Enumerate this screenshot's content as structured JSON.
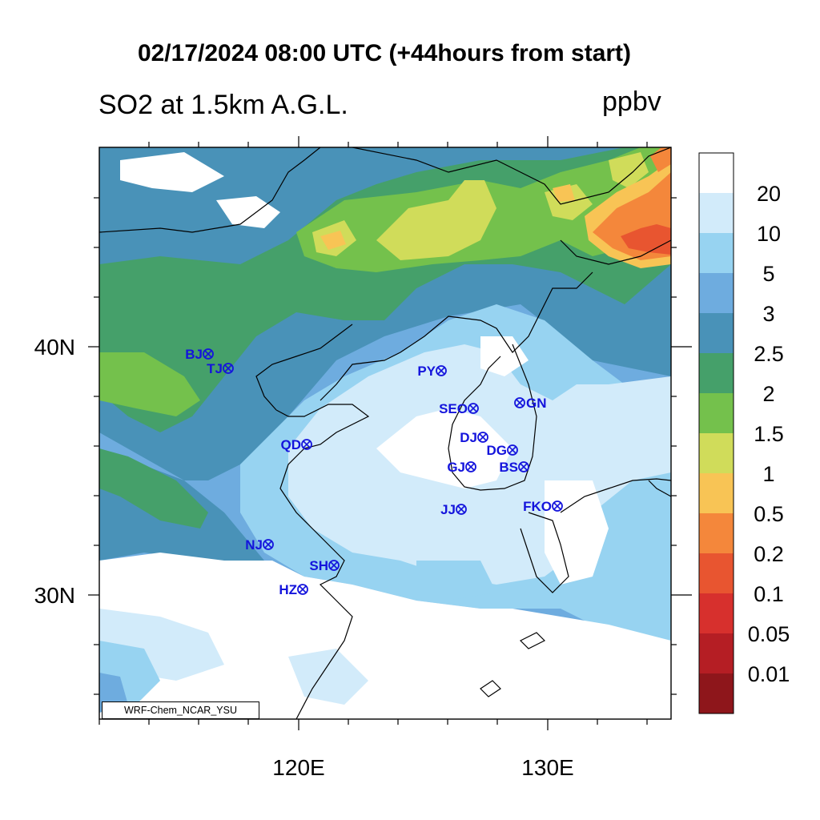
{
  "header": {
    "title": "02/17/2024 08:00 UTC (+44hours from start)",
    "variable": "SO2 at 1.5km A.G.L.",
    "units": "ppbv"
  },
  "map": {
    "lat_labels": [
      "40N",
      "30N"
    ],
    "lon_labels": [
      "120E",
      "130E"
    ],
    "credit": "WRF-Chem_NCAR_YSU"
  },
  "colorbar": {
    "levels": [
      "0.01",
      "0.05",
      "0.1",
      "0.2",
      "0.5",
      "1",
      "1.5",
      "2",
      "2.5",
      "3",
      "5",
      "10",
      "20"
    ],
    "colors": [
      "#ffffff",
      "#d2ebfa",
      "#97d3f1",
      "#6eacdf",
      "#4992b8",
      "#45a06a",
      "#74c14c",
      "#d0dc5a",
      "#f8c455",
      "#f4873b",
      "#e85530",
      "#d7302d",
      "#b51e24",
      "#8e161b"
    ]
  },
  "stations": [
    {
      "code": "BJ"
    },
    {
      "code": "TJ"
    },
    {
      "code": "PY"
    },
    {
      "code": "SEO"
    },
    {
      "code": "GN"
    },
    {
      "code": "QD"
    },
    {
      "code": "DJ"
    },
    {
      "code": "DG"
    },
    {
      "code": "GJ"
    },
    {
      "code": "BS"
    },
    {
      "code": "JJ"
    },
    {
      "code": "FKO"
    },
    {
      "code": "NJ"
    },
    {
      "code": "SH"
    },
    {
      "code": "HZ"
    }
  ],
  "station_color": "#1414dc"
}
